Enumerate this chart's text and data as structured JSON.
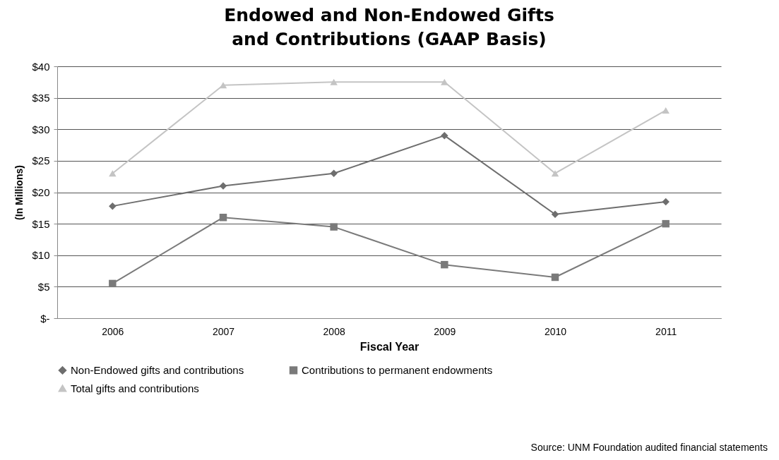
{
  "chart_data": {
    "type": "line",
    "title": "Endowed and Non-Endowed Gifts and Contributions (GAAP Basis)",
    "xlabel": "Fiscal Year",
    "ylabel": "(In Millions)",
    "categories": [
      "2006",
      "2007",
      "2008",
      "2009",
      "2010",
      "2011"
    ],
    "series": [
      {
        "name": "Non-Endowed gifts and contributions",
        "color": "#6e6e6e",
        "marker": "diamond",
        "values": [
          17.8,
          21,
          23,
          29,
          16.5,
          18.5
        ]
      },
      {
        "name": "Contributions to permanent endowments",
        "color": "#7a7a7a",
        "marker": "square",
        "values": [
          5.5,
          16,
          14.5,
          8.5,
          6.5,
          15
        ]
      },
      {
        "name": "Total gifts and contributions",
        "color": "#c4c4c4",
        "marker": "triangle",
        "values": [
          23,
          37,
          37.5,
          37.5,
          23,
          33
        ]
      }
    ],
    "ylim": [
      0,
      40
    ],
    "yticks": [
      {
        "value": 0,
        "label": "$-"
      },
      {
        "value": 5,
        "label": "$5"
      },
      {
        "value": 10,
        "label": "$10"
      },
      {
        "value": 15,
        "label": "$15"
      },
      {
        "value": 20,
        "label": "$20"
      },
      {
        "value": 25,
        "label": "$25"
      },
      {
        "value": 30,
        "label": "$30"
      },
      {
        "value": 35,
        "label": "$35"
      },
      {
        "value": 40,
        "label": "$40"
      }
    ],
    "grid": "y",
    "legend": "bottom",
    "line_style": "solid",
    "annotations": [
      "Source: UNM Foundation audited financial statements"
    ]
  }
}
